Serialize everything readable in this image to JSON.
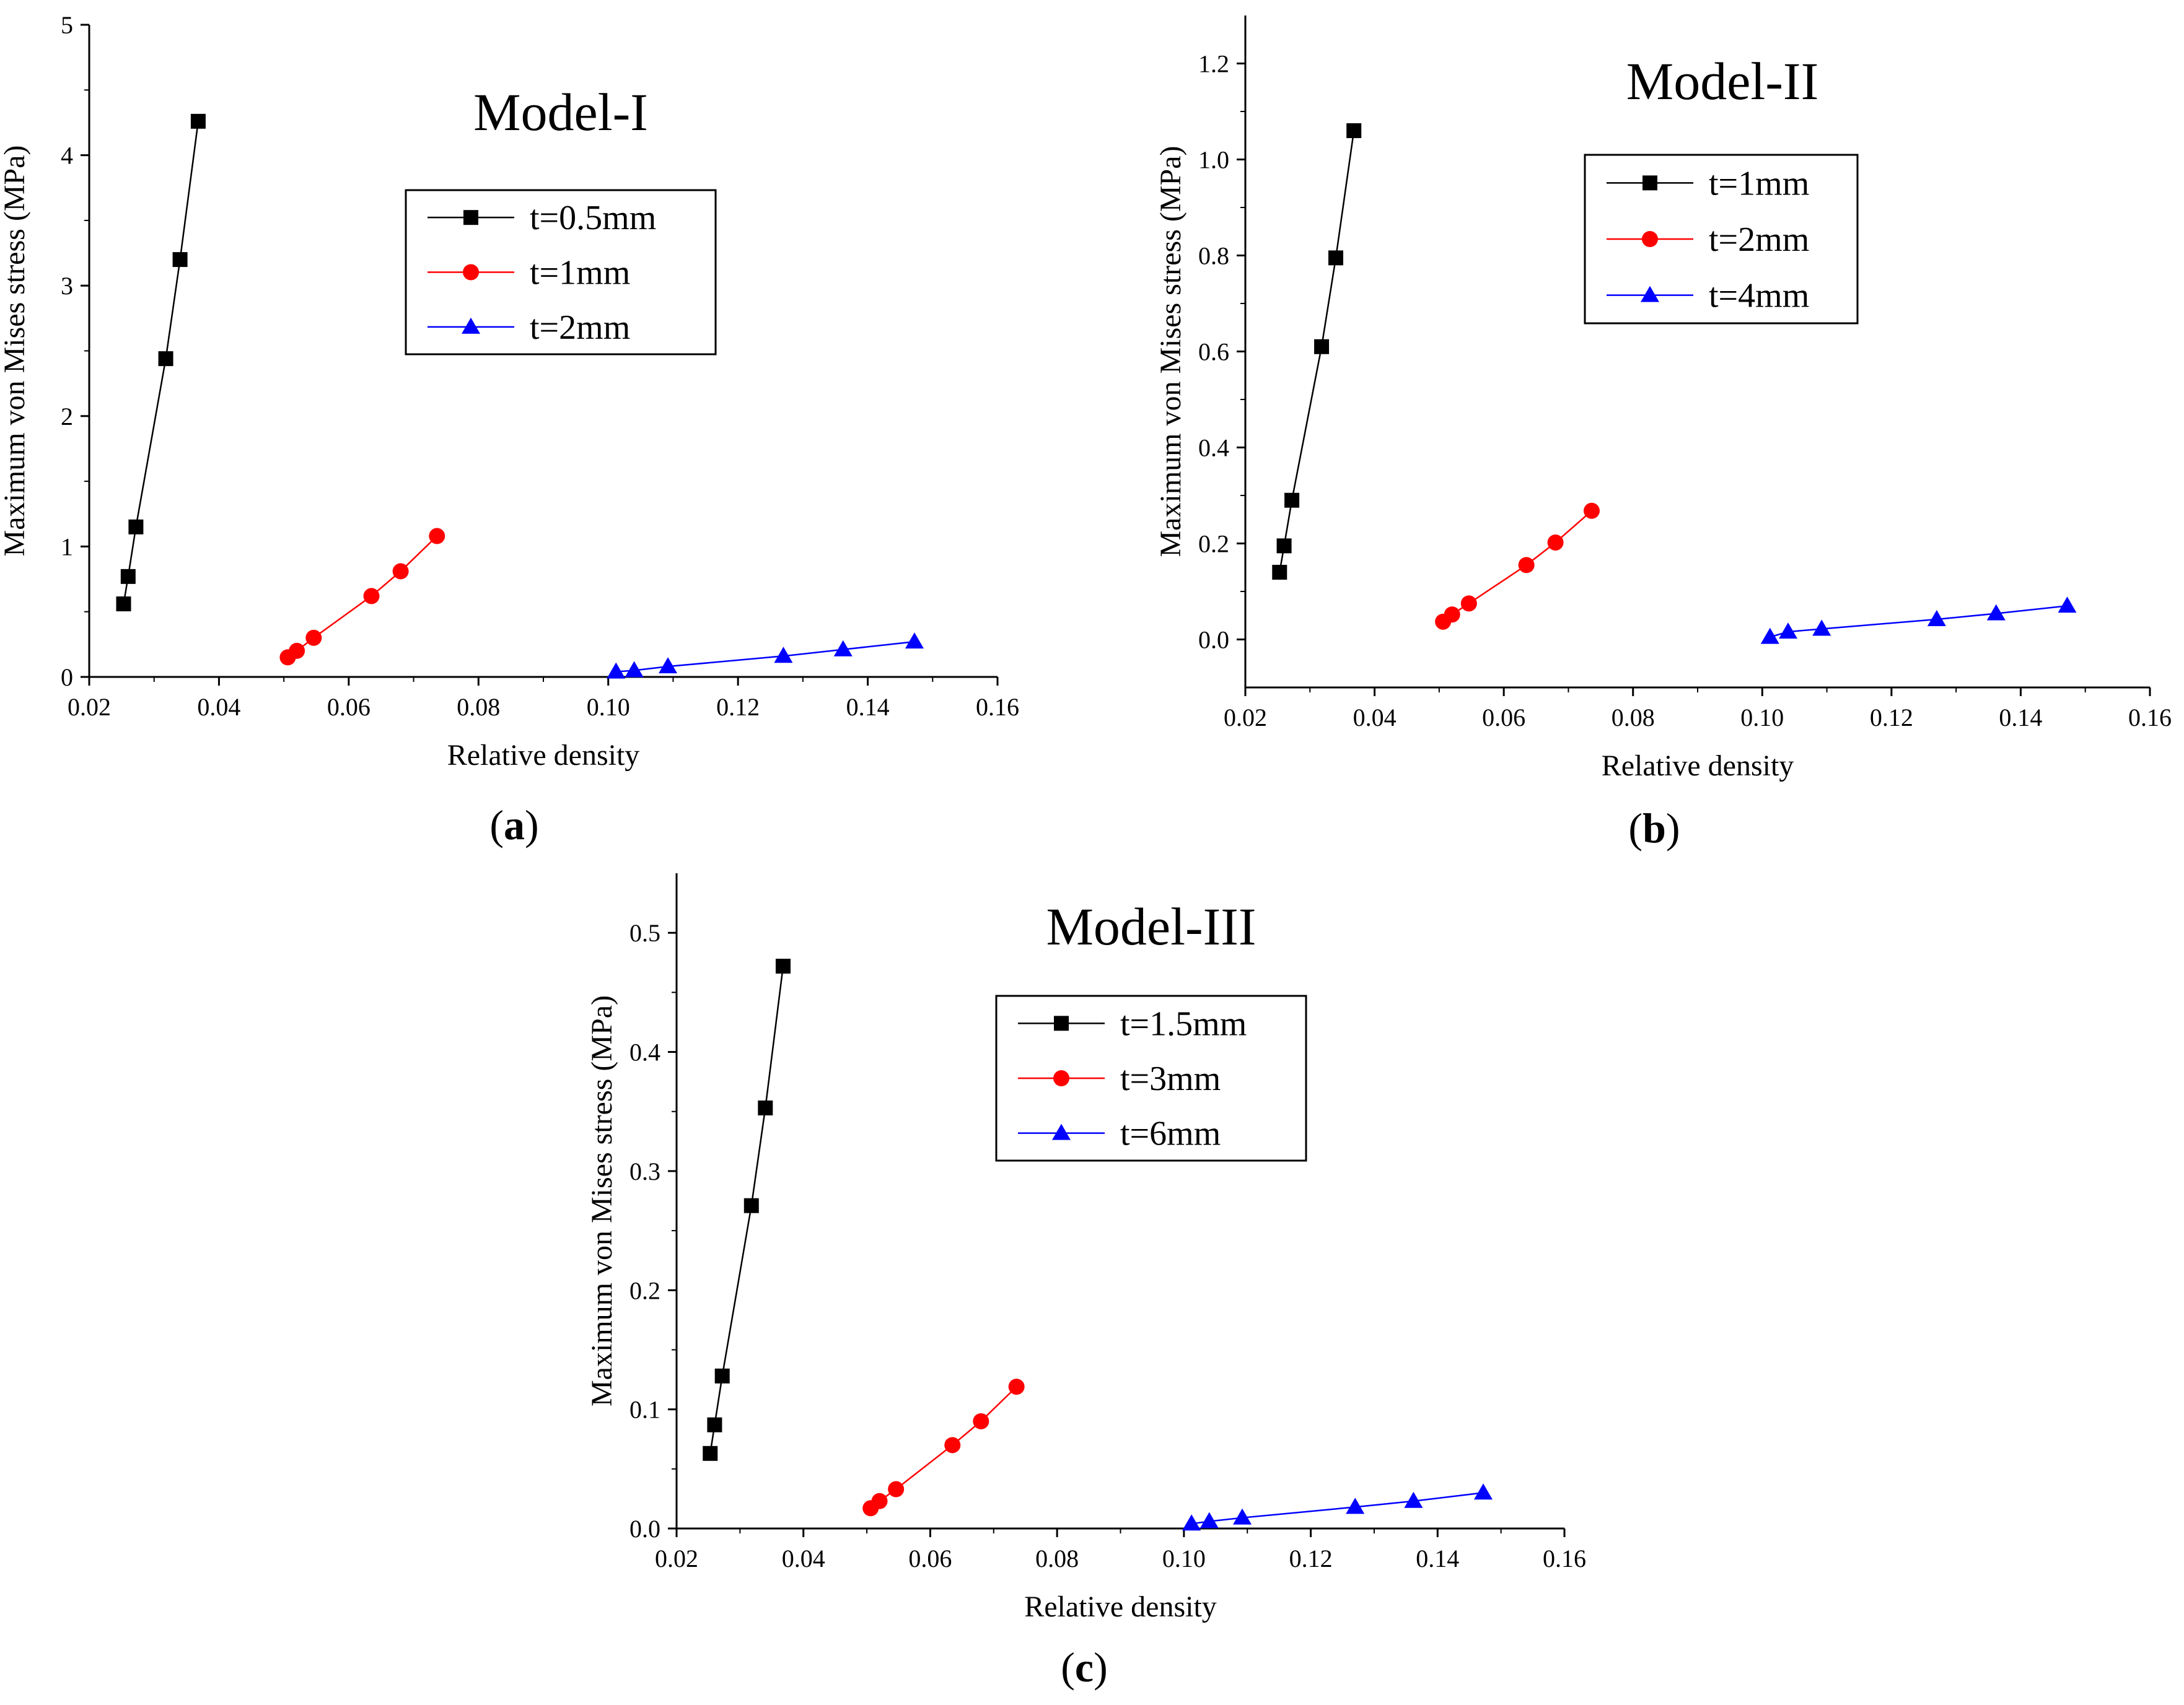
{
  "chart_data": [
    {
      "type": "line",
      "panel_label": "a",
      "title": "Model-I",
      "xlabel": "Relative density",
      "ylabel": "Maximum von Mises stress (MPa)",
      "xlim": [
        0.02,
        0.16
      ],
      "ylim": [
        0,
        5
      ],
      "xticks": [
        0.02,
        0.04,
        0.06,
        0.08,
        0.1,
        0.12,
        0.14,
        0.16
      ],
      "xtick_labels": [
        "0.02",
        "0.04",
        "0.06",
        "0.08",
        "0.10",
        "0.12",
        "0.14",
        "0.16"
      ],
      "yticks": [
        0,
        1,
        2,
        3,
        4,
        5
      ],
      "ytick_labels": [
        "0",
        "1",
        "2",
        "3",
        "4",
        "5"
      ],
      "legend_position": "top-right",
      "series": [
        {
          "name": "t=0.5mm",
          "color": "#000000",
          "marker": "square",
          "x": [
            0.0253,
            0.026,
            0.0272,
            0.0318,
            0.034,
            0.0368
          ],
          "y": [
            0.56,
            0.77,
            1.15,
            2.44,
            3.2,
            4.26
          ]
        },
        {
          "name": "t=1mm",
          "color": "#ff0000",
          "marker": "circle",
          "x": [
            0.0506,
            0.052,
            0.0546,
            0.0635,
            0.068,
            0.0736
          ],
          "y": [
            0.15,
            0.2,
            0.3,
            0.62,
            0.81,
            1.08
          ]
        },
        {
          "name": "t=2mm",
          "color": "#0000ff",
          "marker": "triangle",
          "x": [
            0.1012,
            0.104,
            0.1092,
            0.127,
            0.1362,
            0.1472
          ],
          "y": [
            0.04,
            0.05,
            0.08,
            0.16,
            0.21,
            0.27
          ]
        }
      ]
    },
    {
      "type": "line",
      "panel_label": "b",
      "title": "Model-II",
      "xlabel": "Relative density",
      "ylabel": "Maximum von Mises stress (MPa)",
      "xlim": [
        0.02,
        0.16
      ],
      "ylim": [
        -0.1,
        1.3
      ],
      "xticks": [
        0.02,
        0.04,
        0.06,
        0.08,
        0.1,
        0.12,
        0.14,
        0.16
      ],
      "xtick_labels": [
        "0.02",
        "0.04",
        "0.06",
        "0.08",
        "0.10",
        "0.12",
        "0.14",
        "0.16"
      ],
      "yticks": [
        0.0,
        0.2,
        0.4,
        0.6,
        0.8,
        1.0,
        1.2
      ],
      "ytick_labels": [
        "0.0",
        "0.2",
        "0.4",
        "0.6",
        "0.8",
        "1.0",
        "1.2"
      ],
      "legend_position": "top-right",
      "series": [
        {
          "name": "t=1mm",
          "color": "#000000",
          "marker": "square",
          "x": [
            0.0253,
            0.026,
            0.0272,
            0.0318,
            0.034,
            0.0368
          ],
          "y": [
            0.14,
            0.195,
            0.29,
            0.61,
            0.795,
            1.06
          ]
        },
        {
          "name": "t=2mm",
          "color": "#ff0000",
          "marker": "circle",
          "x": [
            0.0506,
            0.052,
            0.0546,
            0.0635,
            0.068,
            0.0736
          ],
          "y": [
            0.037,
            0.052,
            0.075,
            0.155,
            0.202,
            0.268
          ]
        },
        {
          "name": "t=4mm",
          "color": "#0000ff",
          "marker": "triangle",
          "x": [
            0.1012,
            0.104,
            0.1092,
            0.127,
            0.1362,
            0.1472
          ],
          "y": [
            0.005,
            0.016,
            0.022,
            0.042,
            0.054,
            0.07
          ]
        }
      ]
    },
    {
      "type": "line",
      "panel_label": "c",
      "title": "Model-III",
      "xlabel": "Relative density",
      "ylabel": "Maximum von Mises stress (MPa)",
      "xlim": [
        0.02,
        0.16
      ],
      "ylim": [
        0,
        0.55
      ],
      "xticks": [
        0.02,
        0.04,
        0.06,
        0.08,
        0.1,
        0.12,
        0.14,
        0.16
      ],
      "xtick_labels": [
        "0.02",
        "0.04",
        "0.06",
        "0.08",
        "0.10",
        "0.12",
        "0.14",
        "0.16"
      ],
      "yticks": [
        0.0,
        0.1,
        0.2,
        0.3,
        0.4,
        0.5
      ],
      "ytick_labels": [
        "0.0",
        "0.1",
        "0.2",
        "0.3",
        "0.4",
        "0.5"
      ],
      "legend_position": "top-right",
      "series": [
        {
          "name": "t=1.5mm",
          "color": "#000000",
          "marker": "square",
          "x": [
            0.0253,
            0.026,
            0.0272,
            0.0318,
            0.034,
            0.0368
          ],
          "y": [
            0.063,
            0.087,
            0.128,
            0.271,
            0.353,
            0.472
          ]
        },
        {
          "name": "t=3mm",
          "color": "#ff0000",
          "marker": "circle",
          "x": [
            0.0506,
            0.052,
            0.0546,
            0.0635,
            0.068,
            0.0736
          ],
          "y": [
            0.017,
            0.023,
            0.033,
            0.07,
            0.09,
            0.119
          ]
        },
        {
          "name": "t=6mm",
          "color": "#0000ff",
          "marker": "triangle",
          "x": [
            0.1012,
            0.104,
            0.1092,
            0.127,
            0.1362,
            0.1472
          ],
          "y": [
            0.004,
            0.006,
            0.009,
            0.018,
            0.023,
            0.03
          ]
        }
      ]
    }
  ]
}
